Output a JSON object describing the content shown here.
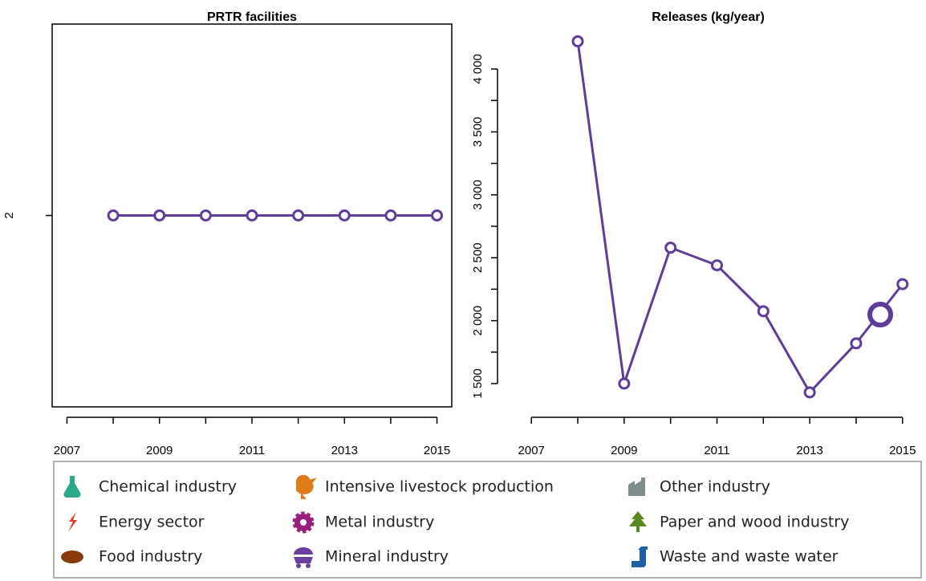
{
  "chart_data": [
    {
      "type": "line",
      "title": "PRTR facilities",
      "frame": true,
      "x": [
        2008,
        2009,
        2010,
        2011,
        2012,
        2013,
        2014,
        2015
      ],
      "series": [
        {
          "color": "#5e3c99",
          "values": [
            2,
            2,
            2,
            2,
            2,
            2,
            2,
            2
          ]
        }
      ],
      "xlim": [
        2006.68,
        2015.32
      ],
      "xticks": [
        2007,
        2009,
        2011,
        2013,
        2015
      ],
      "xminor": [
        2008,
        2010,
        2012,
        2014
      ],
      "ylim": [
        1,
        3
      ],
      "yticks": [
        2
      ]
    },
    {
      "type": "line",
      "title": "Releases (kg/year)",
      "frame": false,
      "x": [
        2008,
        2009,
        2010,
        2011,
        2012,
        2013,
        2014,
        2015
      ],
      "series": [
        {
          "color": "#5e3c99",
          "values": [
            4220,
            1500,
            2580,
            2440,
            2075,
            1430,
            1820,
            2290
          ]
        }
      ],
      "xlim": [
        2006.27,
        2015.35
      ],
      "xticks": [
        2007,
        2009,
        2011,
        2013,
        2015
      ],
      "xminor": [
        2008,
        2010,
        2012,
        2014
      ],
      "ylim": [
        1315,
        4357
      ],
      "yticks": [
        {
          "value": 1500,
          "label": "1 500"
        },
        {
          "value": 2000,
          "label": "2 000"
        },
        {
          "value": 2500,
          "label": "2 500"
        },
        {
          "value": 3000,
          "label": "3 000"
        },
        {
          "value": 3500,
          "label": "3 500"
        },
        {
          "value": 4000,
          "label": "4 000"
        }
      ],
      "yminor": [
        1750,
        2250,
        2750,
        3250,
        3750
      ]
    }
  ],
  "legend": {
    "items": [
      {
        "name": "Chemical industry",
        "color": "#2aa889"
      },
      {
        "name": "Energy sector",
        "color": "#e8352a"
      },
      {
        "name": "Food industry",
        "color": "#8b3a0f"
      },
      {
        "name": "Intensive livestock production",
        "color": "#e07b1a"
      },
      {
        "name": "Metal industry",
        "color": "#9a1f7f"
      },
      {
        "name": "Mineral industry",
        "color": "#6a3fa0"
      },
      {
        "name": "Other industry",
        "color": "#7f8c8d"
      },
      {
        "name": "Paper and wood industry",
        "color": "#5a8a1f"
      },
      {
        "name": "Waste and waste water",
        "color": "#1f5fa8"
      }
    ]
  }
}
